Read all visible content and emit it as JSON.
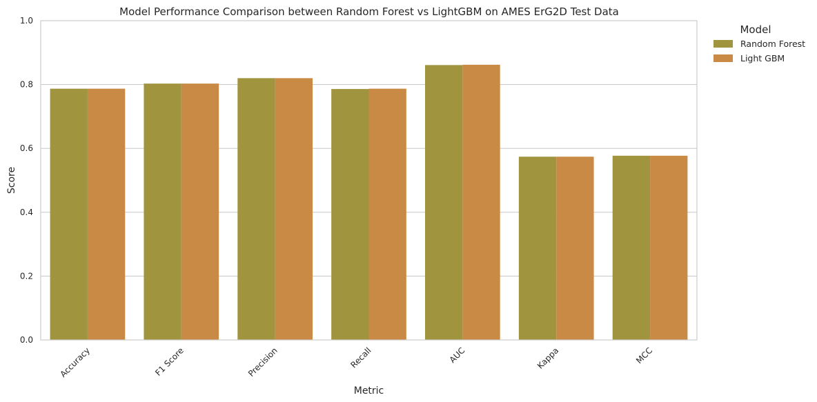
{
  "chart_data": {
    "type": "bar",
    "title": "Model Performance Comparison between Random Forest vs LightGBM on AMES ErG2D Test Data",
    "xlabel": "Metric",
    "ylabel": "Score",
    "ylim": [
      0,
      1.0
    ],
    "yticks": [
      "0.0",
      "0.2",
      "0.4",
      "0.6",
      "0.8",
      "1.0"
    ],
    "categories": [
      "Accuracy",
      "F1 Score",
      "Precision",
      "Recall",
      "AUC",
      "Kappa",
      "MCC"
    ],
    "series": [
      {
        "name": "Random Forest",
        "color": "#a0943f",
        "values": [
          0.787,
          0.803,
          0.82,
          0.786,
          0.861,
          0.574,
          0.577
        ]
      },
      {
        "name": "Light GBM",
        "color": "#c98a45",
        "values": [
          0.787,
          0.803,
          0.82,
          0.787,
          0.862,
          0.574,
          0.577
        ]
      }
    ],
    "grid": "horizontal",
    "legend": {
      "title": "Model",
      "placement": "outside-top-right"
    }
  }
}
